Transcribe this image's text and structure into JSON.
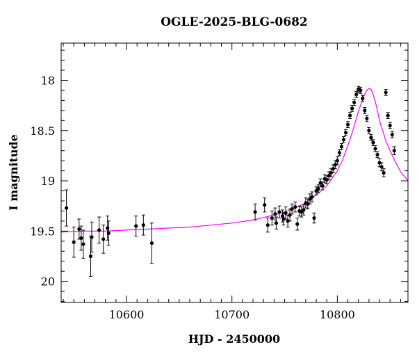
{
  "chart_data": {
    "type": "scatter",
    "title": "OGLE-2025-BLG-0682",
    "xlabel": "HJD - 2450000",
    "ylabel": "I magnitude",
    "xlim": [
      10538,
      10867
    ],
    "ylim": [
      17.63,
      20.21
    ],
    "y_inverted": true,
    "x_ticks": [
      10600,
      10700,
      10800
    ],
    "y_ticks": [
      18,
      18.5,
      19,
      19.5,
      20
    ],
    "y_tick_labels": [
      "18",
      "18.5",
      "19",
      "19.5",
      "20"
    ],
    "grid": false,
    "colors": {
      "points": "#000000",
      "model": "#ff00ff"
    },
    "series": [
      {
        "type": "scatter_errorbar",
        "x": [
          10543,
          10550,
          10555,
          10557,
          10559,
          10566,
          10567,
          10574,
          10578,
          10582,
          10583,
          10609,
          10616,
          10624,
          10722,
          10731,
          10734,
          10738,
          10741,
          10742,
          10745,
          10748,
          10749,
          10751,
          10753,
          10755,
          10757,
          10760,
          10762,
          10764,
          10766,
          10768,
          10770,
          10772,
          10774,
          10776,
          10778,
          10780,
          10782,
          10784,
          10786,
          10788,
          10790,
          10792,
          10794,
          10796,
          10798,
          10800,
          10802,
          10804,
          10806,
          10808,
          10810,
          10812,
          10814,
          10816,
          10818,
          10820,
          10822,
          10824,
          10826,
          10828,
          10830,
          10832,
          10834,
          10836,
          10838,
          10840,
          10842,
          10844,
          10846,
          10848,
          10850,
          10852,
          10854
        ],
        "y": [
          19.27,
          19.61,
          19.48,
          19.57,
          19.63,
          19.75,
          19.56,
          19.49,
          19.58,
          19.47,
          19.52,
          19.45,
          19.44,
          19.62,
          19.31,
          19.24,
          19.44,
          19.37,
          19.33,
          19.42,
          19.31,
          19.35,
          19.38,
          19.32,
          19.4,
          19.34,
          19.28,
          19.26,
          19.43,
          19.3,
          19.31,
          19.29,
          19.22,
          19.23,
          19.18,
          19.16,
          19.37,
          19.1,
          19.08,
          19.02,
          19.05,
          18.98,
          18.99,
          18.95,
          18.92,
          18.88,
          18.84,
          18.8,
          18.72,
          18.66,
          18.59,
          18.52,
          18.44,
          18.35,
          18.28,
          18.22,
          18.14,
          18.09,
          18.1,
          18.18,
          18.3,
          18.38,
          18.5,
          18.57,
          18.62,
          18.68,
          18.74,
          18.82,
          18.86,
          18.92,
          18.12,
          18.35,
          18.45,
          18.54,
          18.7
        ],
        "yerr": [
          0.18,
          0.15,
          0.1,
          0.12,
          0.14,
          0.2,
          0.15,
          0.13,
          0.14,
          0.12,
          0.12,
          0.1,
          0.1,
          0.2,
          0.08,
          0.07,
          0.07,
          0.07,
          0.06,
          0.06,
          0.06,
          0.06,
          0.06,
          0.06,
          0.06,
          0.06,
          0.05,
          0.05,
          0.06,
          0.05,
          0.05,
          0.05,
          0.05,
          0.05,
          0.05,
          0.05,
          0.05,
          0.04,
          0.04,
          0.04,
          0.04,
          0.04,
          0.04,
          0.04,
          0.04,
          0.04,
          0.04,
          0.04,
          0.03,
          0.03,
          0.03,
          0.03,
          0.03,
          0.03,
          0.03,
          0.03,
          0.03,
          0.03,
          0.03,
          0.03,
          0.03,
          0.03,
          0.03,
          0.03,
          0.03,
          0.03,
          0.03,
          0.04,
          0.04,
          0.04,
          0.03,
          0.03,
          0.03,
          0.03,
          0.04
        ]
      },
      {
        "type": "line",
        "x": [
          10538,
          10560,
          10580,
          10600,
          10620,
          10640,
          10660,
          10680,
          10700,
          10720,
          10740,
          10750,
          10760,
          10770,
          10780,
          10790,
          10800,
          10805,
          10810,
          10815,
          10820,
          10825,
          10828,
          10830,
          10832,
          10834,
          10836,
          10838,
          10840,
          10843,
          10846,
          10850,
          10855,
          10860,
          10867
        ],
        "y": [
          19.51,
          19.5,
          19.5,
          19.49,
          19.48,
          19.47,
          19.46,
          19.44,
          19.42,
          19.39,
          19.34,
          19.31,
          19.27,
          19.22,
          19.14,
          19.05,
          18.9,
          18.79,
          18.65,
          18.49,
          18.31,
          18.16,
          18.1,
          18.08,
          18.09,
          18.14,
          18.21,
          18.3,
          18.4,
          18.5,
          18.6,
          18.7,
          18.81,
          18.91,
          19.0
        ]
      }
    ]
  }
}
